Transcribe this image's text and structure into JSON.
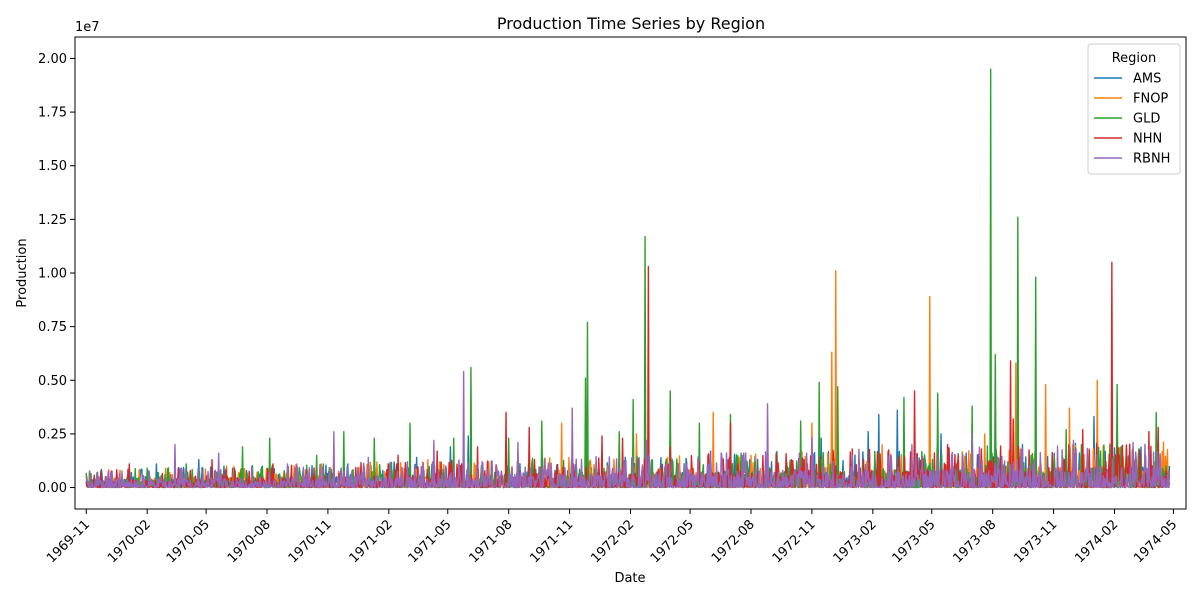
{
  "chart_data": {
    "type": "line",
    "title": "Production Time Series by Region",
    "xlabel": "Date",
    "ylabel": "Production",
    "y_exponent_label": "1e7",
    "x_start": "1969-11-01",
    "xlim": [
      "1969-10-15",
      "1974-05-20"
    ],
    "ylim": [
      -1000000,
      21000000
    ],
    "x_tick_labels": [
      "1969-11",
      "1970-02",
      "1970-05",
      "1970-08",
      "1970-11",
      "1971-02",
      "1971-05",
      "1971-08",
      "1971-11",
      "1972-02",
      "1972-05",
      "1972-08",
      "1972-11",
      "1973-02",
      "1973-05",
      "1973-08",
      "1973-11",
      "1974-02",
      "1974-05"
    ],
    "x_tick_dates": [
      "1969-11-01",
      "1970-02-01",
      "1970-05-01",
      "1970-08-01",
      "1970-11-01",
      "1971-02-01",
      "1971-05-01",
      "1971-08-01",
      "1971-11-01",
      "1972-02-01",
      "1972-05-01",
      "1972-08-01",
      "1972-11-01",
      "1973-02-01",
      "1973-05-01",
      "1973-08-01",
      "1973-11-01",
      "1974-02-01",
      "1974-05-01"
    ],
    "y_ticks": [
      0,
      2500000,
      5000000,
      7500000,
      10000000,
      12500000,
      15000000,
      17500000,
      20000000
    ],
    "y_tick_labels": [
      "0.00",
      "0.25",
      "0.50",
      "0.75",
      "1.00",
      "1.25",
      "1.50",
      "1.75",
      "2.00"
    ],
    "legend_title": "Region",
    "legend_position": "top-right",
    "grid": false,
    "series": [
      {
        "name": "AMS",
        "color": "#1f77b4",
        "points": [
          [
            "1970-01-01",
            400000
          ],
          [
            "1970-02-15",
            1100000
          ],
          [
            "1970-04-20",
            1300000
          ],
          [
            "1970-06-10",
            900000
          ],
          [
            "1970-09-01",
            1000000
          ],
          [
            "1970-12-01",
            1100000
          ],
          [
            "1971-03-15",
            1400000
          ],
          [
            "1971-05-05",
            1900000
          ],
          [
            "1971-06-01",
            2400000
          ],
          [
            "1971-09-01",
            1500000
          ],
          [
            "1971-12-01",
            1200000
          ],
          [
            "1972-03-01",
            1000000
          ],
          [
            "1972-06-01",
            1700000
          ],
          [
            "1972-09-01",
            1200000
          ],
          [
            "1972-11-15",
            2300000
          ],
          [
            "1973-01-25",
            2600000
          ],
          [
            "1973-02-10",
            3400000
          ],
          [
            "1973-03-10",
            3600000
          ],
          [
            "1973-05-15",
            2500000
          ],
          [
            "1973-07-01",
            2800000
          ],
          [
            "1973-09-15",
            2000000
          ],
          [
            "1973-11-20",
            1800000
          ],
          [
            "1974-01-01",
            3300000
          ],
          [
            "1974-03-01",
            1200000
          ],
          [
            "1974-04-10",
            800000
          ]
        ]
      },
      {
        "name": "FNOP",
        "color": "#ff7f0e",
        "points": [
          [
            "1970-03-01",
            900000
          ],
          [
            "1970-06-01",
            1000000
          ],
          [
            "1970-09-15",
            1100000
          ],
          [
            "1971-01-01",
            1200000
          ],
          [
            "1971-04-01",
            1300000
          ],
          [
            "1971-05-25",
            1700000
          ],
          [
            "1971-09-01",
            2000000
          ],
          [
            "1971-10-20",
            3000000
          ],
          [
            "1972-02-10",
            2500000
          ],
          [
            "1972-06-05",
            3500000
          ],
          [
            "1972-08-01",
            1500000
          ],
          [
            "1972-11-01",
            3000000
          ],
          [
            "1972-12-01",
            6300000
          ],
          [
            "1972-12-07",
            10100000
          ],
          [
            "1973-02-15",
            2000000
          ],
          [
            "1973-04-28",
            8900000
          ],
          [
            "1973-07-20",
            2500000
          ],
          [
            "1973-09-05",
            5800000
          ],
          [
            "1973-10-20",
            4800000
          ],
          [
            "1973-11-25",
            3700000
          ],
          [
            "1974-01-06",
            5000000
          ],
          [
            "1974-03-01",
            1800000
          ],
          [
            "1974-04-10",
            1000000
          ]
        ]
      },
      {
        "name": "GLD",
        "color": "#2ca02c",
        "points": [
          [
            "1970-02-01",
            900000
          ],
          [
            "1970-04-01",
            1100000
          ],
          [
            "1970-06-25",
            1900000
          ],
          [
            "1970-08-05",
            2300000
          ],
          [
            "1970-10-15",
            1500000
          ],
          [
            "1970-11-25",
            2600000
          ],
          [
            "1971-01-10",
            2300000
          ],
          [
            "1971-03-05",
            3000000
          ],
          [
            "1971-05-10",
            2300000
          ],
          [
            "1971-06-05",
            5600000
          ],
          [
            "1971-08-01",
            2300000
          ],
          [
            "1971-09-20",
            3100000
          ],
          [
            "1971-11-25",
            5100000
          ],
          [
            "1971-11-28",
            7700000
          ],
          [
            "1972-01-15",
            2600000
          ],
          [
            "1972-02-05",
            4100000
          ],
          [
            "1972-02-23",
            11700000
          ],
          [
            "1972-04-01",
            4500000
          ],
          [
            "1972-05-15",
            3000000
          ],
          [
            "1972-07-01",
            3400000
          ],
          [
            "1972-10-15",
            3100000
          ],
          [
            "1972-11-12",
            4900000
          ],
          [
            "1972-12-10",
            4700000
          ],
          [
            "1973-03-20",
            4200000
          ],
          [
            "1973-05-10",
            4400000
          ],
          [
            "1973-07-01",
            3800000
          ],
          [
            "1973-07-29",
            19500000
          ],
          [
            "1973-08-05",
            6200000
          ],
          [
            "1973-09-08",
            12600000
          ],
          [
            "1973-10-05",
            9800000
          ],
          [
            "1973-11-20",
            2700000
          ],
          [
            "1974-02-05",
            4800000
          ],
          [
            "1974-04-05",
            3500000
          ],
          [
            "1974-04-20",
            1000000
          ]
        ]
      },
      {
        "name": "NHN",
        "color": "#d62728",
        "points": [
          [
            "1970-01-05",
            1100000
          ],
          [
            "1970-03-20",
            900000
          ],
          [
            "1970-05-10",
            1300000
          ],
          [
            "1970-08-10",
            1100000
          ],
          [
            "1971-02-15",
            1500000
          ],
          [
            "1971-04-15",
            1700000
          ],
          [
            "1971-06-15",
            1900000
          ],
          [
            "1971-07-28",
            3500000
          ],
          [
            "1971-09-01",
            2800000
          ],
          [
            "1971-12-20",
            2400000
          ],
          [
            "1972-01-20",
            2300000
          ],
          [
            "1972-02-28",
            10300000
          ],
          [
            "1972-04-01",
            1900000
          ],
          [
            "1972-07-01",
            3000000
          ],
          [
            "1972-10-01",
            1300000
          ],
          [
            "1973-01-01",
            1800000
          ],
          [
            "1973-04-05",
            4500000
          ],
          [
            "1973-05-25",
            2000000
          ],
          [
            "1973-07-15",
            1800000
          ],
          [
            "1973-08-28",
            5900000
          ],
          [
            "1973-09-01",
            3200000
          ],
          [
            "1973-12-15",
            2700000
          ],
          [
            "1974-01-28",
            10500000
          ],
          [
            "1974-03-25",
            2600000
          ],
          [
            "1974-04-08",
            2800000
          ],
          [
            "1974-04-20",
            800000
          ]
        ]
      },
      {
        "name": "RBNH",
        "color": "#9467bd",
        "points": [
          [
            "1970-03-15",
            2000000
          ],
          [
            "1970-05-20",
            1600000
          ],
          [
            "1970-09-01",
            1100000
          ],
          [
            "1970-11-10",
            2600000
          ],
          [
            "1971-01-01",
            1400000
          ],
          [
            "1971-04-10",
            2200000
          ],
          [
            "1971-05-25",
            5400000
          ],
          [
            "1971-08-15",
            2100000
          ],
          [
            "1971-11-05",
            3700000
          ],
          [
            "1972-02-25",
            2200000
          ],
          [
            "1972-06-01",
            1700000
          ],
          [
            "1972-08-26",
            3900000
          ],
          [
            "1972-11-01",
            2300000
          ],
          [
            "1973-01-01",
            1500000
          ],
          [
            "1973-04-01",
            2000000
          ],
          [
            "1973-07-01",
            2500000
          ],
          [
            "1973-09-15",
            1800000
          ],
          [
            "1973-12-01",
            2200000
          ],
          [
            "1974-03-01",
            2100000
          ],
          [
            "1974-04-15",
            500000
          ]
        ]
      }
    ]
  }
}
